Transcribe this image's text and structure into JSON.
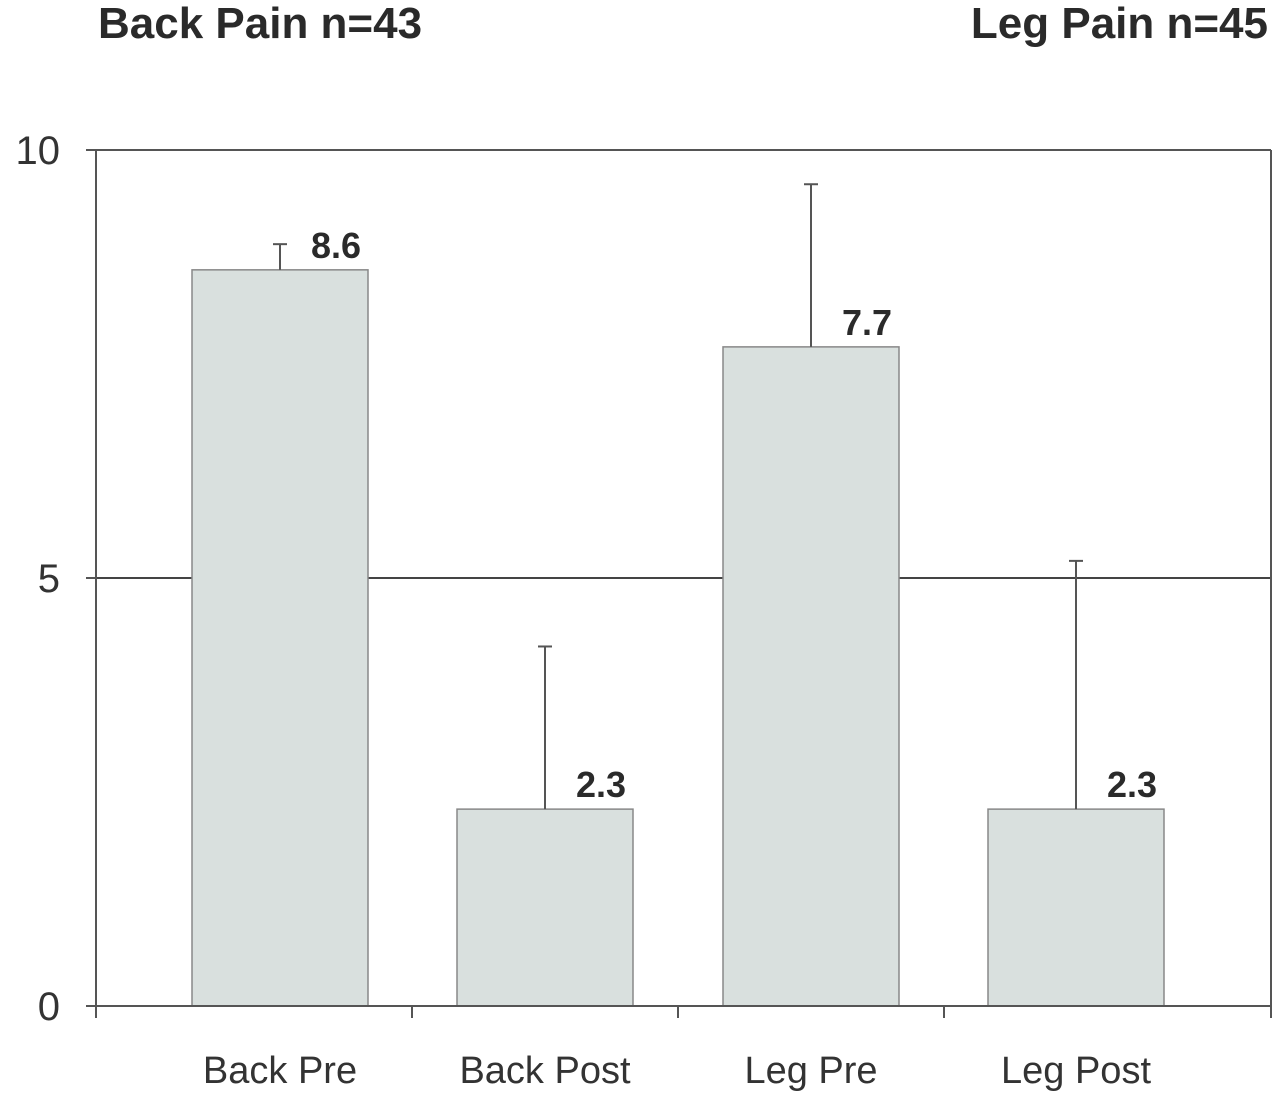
{
  "chart_data": {
    "type": "bar",
    "group_titles": [
      "Back Pain n=43",
      "Leg Pain n=45"
    ],
    "categories": [
      "Back Pre",
      "Back Post",
      "Leg Pre",
      "Leg Post"
    ],
    "values": [
      8.6,
      2.3,
      7.7,
      2.3
    ],
    "value_labels": [
      "8.6",
      "2.3",
      "7.7",
      "2.3"
    ],
    "error_upper": [
      8.9,
      4.2,
      9.6,
      5.2
    ],
    "ylim": [
      0,
      10
    ],
    "yticks": [
      0,
      5,
      10
    ],
    "ytick_labels": [
      "0",
      "5",
      "10"
    ],
    "gridlines": [
      5
    ],
    "bar_color": "#d9e0de",
    "bar_edge_color": "#888888",
    "axis_color": "#555555"
  }
}
